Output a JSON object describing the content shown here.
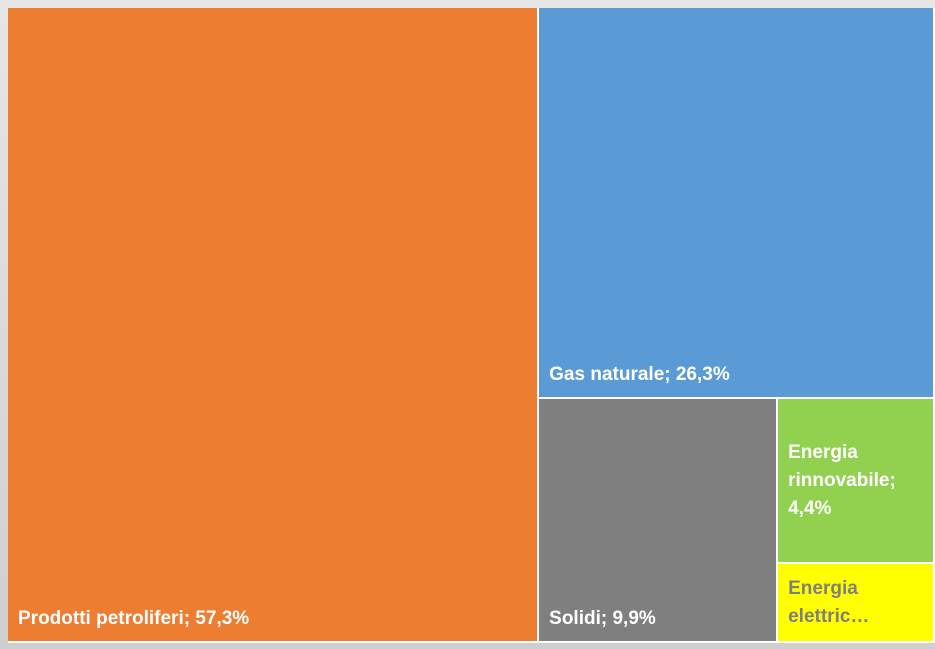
{
  "chart_data": {
    "type": "treemap",
    "labels": [
      "Prodotti petroliferi; 57,3%",
      "Gas naturale; 26,3%",
      "Solidi; 9,9%",
      "Energia rinnovabile; 4,4%",
      "Energia elettric…"
    ],
    "values": [
      57.3,
      26.3,
      9.9,
      4.4,
      2.1
    ],
    "colors": [
      "#ed7d31",
      "#5b9bd5",
      "#7f7f7f",
      "#92d050",
      "#ffff00"
    ],
    "label_colors": [
      "#ffffff",
      "#ffffff",
      "#ffffff",
      "#ffffff",
      "#7f7f7f"
    ]
  }
}
